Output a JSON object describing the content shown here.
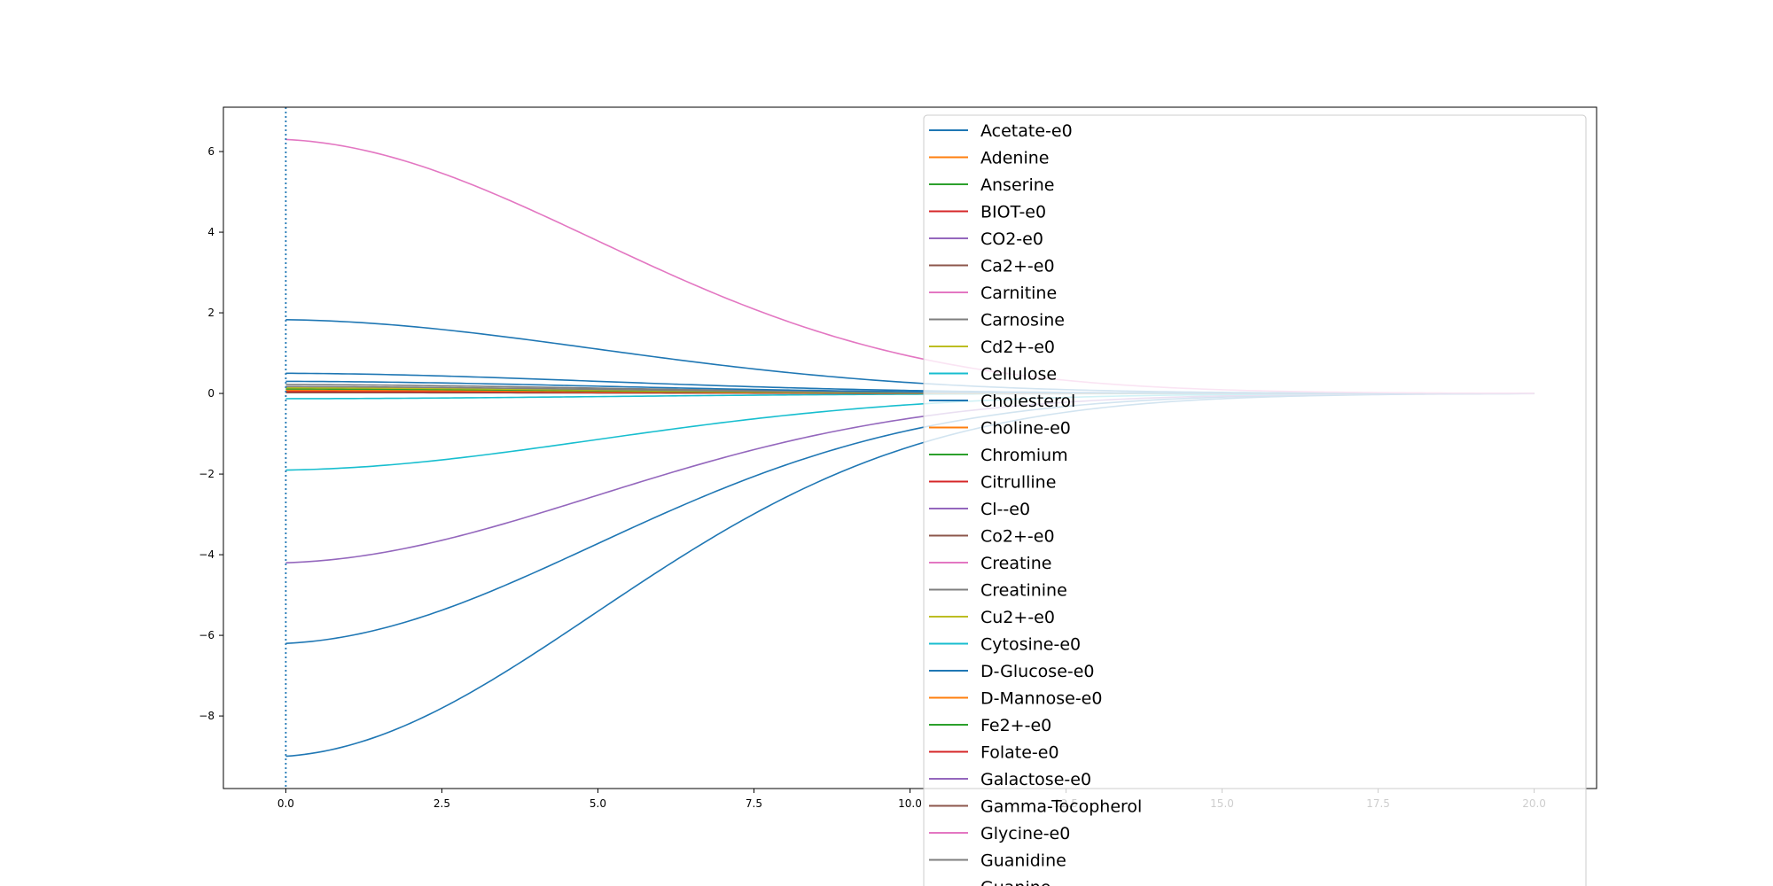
{
  "chart_data": {
    "type": "line",
    "title": "",
    "xlabel": "",
    "ylabel": "",
    "xlim": [
      -1,
      21
    ],
    "ylim": [
      -9.8,
      7.1
    ],
    "x_ticks": [
      0.0,
      2.5,
      5.0,
      7.5,
      10.0,
      12.5,
      15.0,
      17.5,
      20.0
    ],
    "x_tick_labels": [
      "0.0",
      "2.5",
      "5.0",
      "7.5",
      "10.0",
      "12.5",
      "15.0",
      "17.5",
      "20.0"
    ],
    "y_ticks": [
      -8,
      -6,
      -4,
      -2,
      0,
      2,
      4,
      6
    ],
    "y_tick_labels": [
      "−8",
      "−6",
      "−4",
      "−2",
      "0",
      "2",
      "4",
      "6"
    ],
    "vline_x": 0,
    "grid": false,
    "legend_position": "top-right",
    "palette": [
      "#1f77b4",
      "#ff7f0e",
      "#2ca02c",
      "#d62728",
      "#9467bd",
      "#8c564b",
      "#e377c2",
      "#7f7f7f",
      "#bcbd22",
      "#17becf"
    ],
    "x_start": 0,
    "x_end": 20,
    "legend_entries": [
      "Acetate-e0",
      "Adenine",
      "Anserine",
      "BIOT-e0",
      "CO2-e0",
      "Ca2+-e0",
      "Carnitine",
      "Carnosine",
      "Cd2+-e0",
      "Cellulose",
      "Cholesterol",
      "Choline-e0",
      "Chromium",
      "Citrulline",
      "Cl--e0",
      "Co2+-e0",
      "Creatine",
      "Creatinine",
      "Cu2+-e0",
      "Cytosine-e0",
      "D-Glucose-e0",
      "D-Mannose-e0",
      "Fe2+-e0",
      "Folate-e0",
      "Galactose-e0",
      "Gamma-Tocopherol",
      "Glycine-e0",
      "Guanidine",
      "Guanine"
    ],
    "series": [
      {
        "color": "#1f77b4",
        "y0": -9.0
      },
      {
        "color": "#1f77b4",
        "y0": -6.2
      },
      {
        "color": "#9467bd",
        "y0": -4.2
      },
      {
        "color": "#17becf",
        "y0": -1.9
      },
      {
        "color": "#17becf",
        "y0": -0.13
      },
      {
        "color": "#8c564b",
        "y0": 0.02
      },
      {
        "color": "#d62728",
        "y0": 0.05
      },
      {
        "color": "#ff7f0e",
        "y0": 0.08
      },
      {
        "color": "#2ca02c",
        "y0": 0.11
      },
      {
        "color": "#bcbd22",
        "y0": 0.14
      },
      {
        "color": "#7f7f7f",
        "y0": 0.17
      },
      {
        "color": "#7f7f7f",
        "y0": 0.22
      },
      {
        "color": "#1f77b4",
        "y0": 0.3
      },
      {
        "color": "#1f77b4",
        "y0": 0.5
      },
      {
        "color": "#1f77b4",
        "y0": 1.83
      },
      {
        "color": "#e377c2",
        "y0": 6.3
      }
    ]
  }
}
